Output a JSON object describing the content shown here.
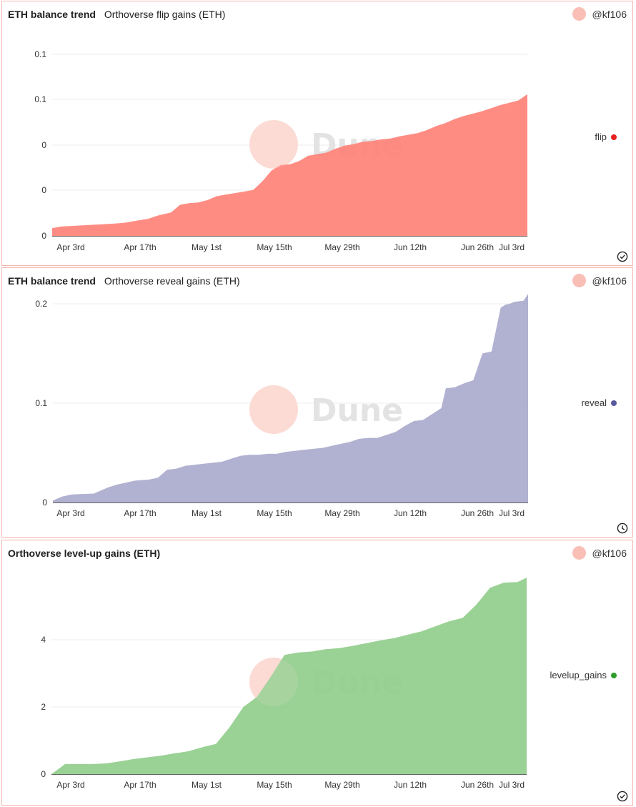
{
  "user": "@kf106",
  "watermark": "Dune",
  "chart_data": [
    {
      "type": "area",
      "title": "ETH balance trend",
      "subtitle": "Orthoverse flip gains (ETH)",
      "series": [
        {
          "name": "flip",
          "color": "#ff7f76",
          "dot_color": "#e8201d"
        }
      ],
      "x_ticks": [
        "Apr 3rd",
        "Apr 17th",
        "May 1st",
        "May 15th",
        "May 29th",
        "Jun 12th",
        "Jun 26th",
        "Jul 3rd"
      ],
      "y_tick_labels": [
        "0",
        "0",
        "0",
        "0.1",
        "0.1"
      ],
      "ylim": [
        0,
        0.13
      ],
      "x_days": [
        0,
        2,
        5,
        8,
        11,
        14,
        16,
        18,
        21,
        23,
        26,
        28,
        30,
        32,
        34,
        36,
        38,
        40,
        42,
        44,
        46,
        48,
        50,
        52,
        54,
        56,
        58,
        60,
        62,
        64,
        66,
        68,
        70,
        72,
        74,
        76,
        78,
        80,
        82,
        84,
        86,
        88,
        90,
        92,
        94,
        96,
        98,
        100,
        102,
        104
      ],
      "values": [
        0.005,
        0.006,
        0.0065,
        0.007,
        0.0075,
        0.008,
        0.0085,
        0.0095,
        0.011,
        0.013,
        0.015,
        0.02,
        0.021,
        0.0215,
        0.023,
        0.0255,
        0.0265,
        0.0275,
        0.0285,
        0.0295,
        0.035,
        0.042,
        0.0455,
        0.046,
        0.048,
        0.0515,
        0.0525,
        0.0535,
        0.056,
        0.058,
        0.059,
        0.0605,
        0.061,
        0.062,
        0.0625,
        0.064,
        0.065,
        0.066,
        0.068,
        0.0705,
        0.0725,
        0.075,
        0.077,
        0.0785,
        0.08,
        0.082,
        0.084,
        0.0855,
        0.087,
        0.091
      ]
    },
    {
      "type": "area",
      "title": "ETH balance trend",
      "subtitle": "Orthoverse reveal gains (ETH)",
      "series": [
        {
          "name": "reveal",
          "color": "#a8a8cc",
          "dot_color": "#5a5a9e"
        }
      ],
      "x_ticks": [
        "Apr 3rd",
        "Apr 17th",
        "May 1st",
        "May 15th",
        "May 29th",
        "Jun 12th",
        "Jun 26th",
        "Jul 3rd"
      ],
      "y_tick_labels": [
        "0",
        "0.1",
        "0.2"
      ],
      "ylim": [
        0,
        0.2
      ],
      "x_days": [
        0,
        2,
        4,
        6,
        9,
        11,
        12,
        14,
        16,
        18,
        21,
        23,
        25,
        27,
        29,
        31,
        33,
        35,
        37,
        39,
        41,
        43,
        45,
        47,
        49,
        51,
        53,
        55,
        57,
        59,
        61,
        63,
        65,
        67,
        69,
        71,
        73,
        75,
        77,
        79,
        81,
        83,
        85,
        86,
        88,
        90,
        92,
        94,
        96,
        98,
        99,
        100,
        101,
        103,
        104
      ],
      "values": [
        0.002,
        0.006,
        0.008,
        0.0085,
        0.009,
        0.013,
        0.015,
        0.018,
        0.02,
        0.022,
        0.023,
        0.025,
        0.033,
        0.034,
        0.037,
        0.038,
        0.039,
        0.04,
        0.041,
        0.044,
        0.047,
        0.048,
        0.048,
        0.049,
        0.049,
        0.051,
        0.052,
        0.053,
        0.054,
        0.055,
        0.057,
        0.059,
        0.061,
        0.064,
        0.065,
        0.065,
        0.068,
        0.071,
        0.077,
        0.082,
        0.083,
        0.089,
        0.095,
        0.115,
        0.116,
        0.12,
        0.123,
        0.15,
        0.152,
        0.196,
        0.199,
        0.2,
        0.202,
        0.203,
        0.21
      ]
    },
    {
      "type": "area",
      "title": "Orthoverse level-up gains (ETH)",
      "subtitle": "",
      "series": [
        {
          "name": "levelup_gains",
          "color": "#8fcc8a",
          "dot_color": "#2f9e2c"
        }
      ],
      "x_ticks": [
        "Apr 3rd",
        "Apr 17th",
        "May 1st",
        "May 15th",
        "May 29th",
        "Jun 12th",
        "Jun 26th",
        "Jul 3rd"
      ],
      "y_tick_labels": [
        "0",
        "2",
        "4"
      ],
      "ylim": [
        0,
        6
      ],
      "x_days": [
        0,
        3,
        6,
        9,
        12,
        15,
        18,
        21,
        24,
        27,
        30,
        33,
        36,
        39,
        42,
        45,
        48,
        51,
        54,
        57,
        60,
        63,
        66,
        69,
        72,
        75,
        78,
        81,
        84,
        87,
        90,
        93,
        96,
        99,
        102,
        104
      ],
      "values": [
        0.0,
        0.3,
        0.3,
        0.3,
        0.32,
        0.38,
        0.45,
        0.5,
        0.55,
        0.62,
        0.68,
        0.8,
        0.9,
        1.4,
        2.0,
        2.3,
        2.9,
        3.55,
        3.62,
        3.65,
        3.72,
        3.75,
        3.82,
        3.9,
        3.98,
        4.05,
        4.15,
        4.25,
        4.4,
        4.55,
        4.65,
        5.05,
        5.55,
        5.7,
        5.72,
        5.85
      ]
    }
  ]
}
